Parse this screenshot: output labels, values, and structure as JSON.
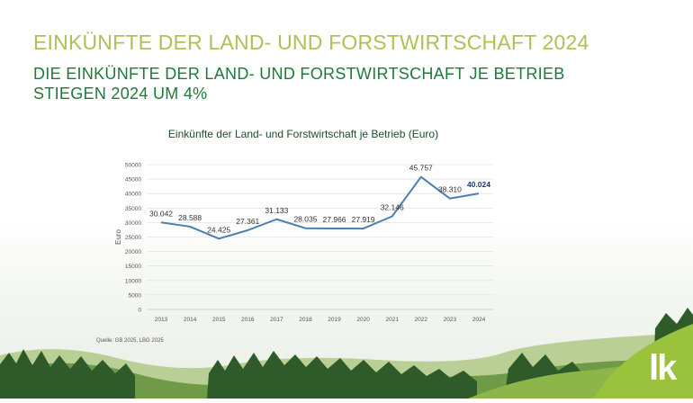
{
  "headline": "EINKÜNFTE DER LAND- UND FORSTWIRTSCHAFT 2024",
  "subhead_line1": "DIE EINKÜNFTE DER LAND- UND FORSTWIRTSCHAFT JE BETRIEB",
  "subhead_line2": "STIEGEN 2024 UM 4%",
  "source": "Quelle: GB 2025, LBG 2025",
  "logo": "lk",
  "colors": {
    "line": "#4a7fae",
    "headline": "#a9c456",
    "subhead": "#1f7a3a",
    "logo": "#9bc23c"
  },
  "chart_data": {
    "type": "line",
    "title": "Einkünfte der Land- und Forstwirtschaft je Betrieb (Euro)",
    "ylabel": "Euro",
    "xlabel": "",
    "ylim": [
      0,
      50000
    ],
    "yticks": [
      0,
      5000,
      10000,
      15000,
      20000,
      25000,
      30000,
      35000,
      40000,
      45000,
      50000
    ],
    "grid": true,
    "categories": [
      "2013",
      "2014",
      "2015",
      "2016",
      "2017",
      "2018",
      "2019",
      "2020",
      "2021",
      "2022",
      "2023",
      "2024"
    ],
    "series": [
      {
        "values": [
          30042,
          28588,
          24425,
          27361,
          31133,
          28035,
          27966,
          27919,
          32146,
          45757,
          38310,
          40024
        ],
        "labels": [
          "30.042",
          "28.588",
          "24.425",
          "27.361",
          "31.133",
          "28.035",
          "27.966",
          "27.919",
          "32.146",
          "45.757",
          "38.310",
          "40.024"
        ]
      }
    ]
  }
}
